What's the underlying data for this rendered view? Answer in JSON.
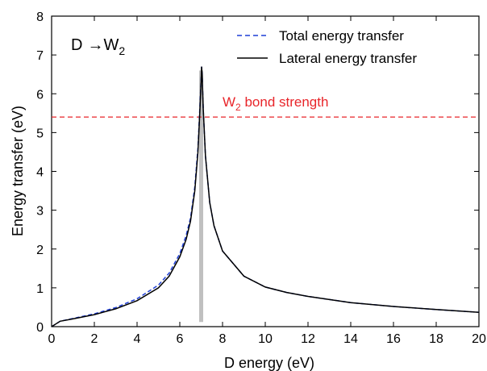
{
  "chart_data": {
    "type": "line",
    "xlabel": "D energy (eV)",
    "ylabel": "Energy transfer (eV)",
    "xlim": [
      0,
      20
    ],
    "ylim": [
      0,
      8
    ],
    "x_ticks": [
      0,
      2,
      4,
      6,
      8,
      10,
      12,
      14,
      16,
      18,
      20
    ],
    "y_ticks": [
      0,
      1,
      2,
      3,
      4,
      5,
      6,
      7,
      8
    ],
    "grid": false,
    "legend_position": "top-right",
    "reaction_label": {
      "left": "D",
      "arrow": "→",
      "right": "W",
      "sub": "2"
    },
    "series": [
      {
        "name": "Total energy transfer",
        "style": "dashed",
        "color": "#1f3fd6",
        "points": [
          [
            0,
            0
          ],
          [
            0.4,
            0.14
          ],
          [
            1,
            0.21
          ],
          [
            2,
            0.33
          ],
          [
            3,
            0.49
          ],
          [
            4,
            0.72
          ],
          [
            5,
            1.07
          ],
          [
            5.5,
            1.38
          ],
          [
            6,
            1.88
          ],
          [
            6.3,
            2.35
          ],
          [
            6.5,
            2.8
          ],
          [
            6.7,
            3.6
          ],
          [
            6.85,
            4.6
          ],
          [
            6.95,
            5.8
          ],
          [
            7.0,
            6.4
          ],
          [
            7.02,
            6.7
          ],
          [
            7.05,
            6.45
          ],
          [
            7.1,
            5.6
          ],
          [
            7.2,
            4.4
          ],
          [
            7.4,
            3.2
          ],
          [
            7.6,
            2.6
          ],
          [
            8,
            1.95
          ],
          [
            9,
            1.3
          ],
          [
            10,
            1.02
          ],
          [
            11,
            0.88
          ],
          [
            12,
            0.78
          ],
          [
            14,
            0.62
          ],
          [
            16,
            0.52
          ],
          [
            18,
            0.44
          ],
          [
            20,
            0.37
          ]
        ]
      },
      {
        "name": "Lateral energy transfer",
        "style": "solid",
        "color": "#000000",
        "points": [
          [
            0,
            0
          ],
          [
            0.4,
            0.14
          ],
          [
            1,
            0.2
          ],
          [
            2,
            0.31
          ],
          [
            3,
            0.46
          ],
          [
            4,
            0.67
          ],
          [
            5,
            1.0
          ],
          [
            5.5,
            1.3
          ],
          [
            6,
            1.8
          ],
          [
            6.3,
            2.25
          ],
          [
            6.5,
            2.72
          ],
          [
            6.7,
            3.5
          ],
          [
            6.85,
            4.5
          ],
          [
            6.95,
            5.7
          ],
          [
            7.0,
            6.35
          ],
          [
            7.02,
            6.7
          ],
          [
            7.05,
            6.45
          ],
          [
            7.1,
            5.6
          ],
          [
            7.2,
            4.4
          ],
          [
            7.4,
            3.2
          ],
          [
            7.6,
            2.6
          ],
          [
            8,
            1.95
          ],
          [
            9,
            1.3
          ],
          [
            10,
            1.02
          ],
          [
            11,
            0.88
          ],
          [
            12,
            0.78
          ],
          [
            14,
            0.62
          ],
          [
            16,
            0.52
          ],
          [
            18,
            0.44
          ],
          [
            20,
            0.37
          ]
        ]
      }
    ],
    "reference_line": {
      "y": 5.4,
      "color": "#e8252a",
      "style": "dashed",
      "label_main": "W",
      "label_sub": "2",
      "label_rest": " bond strength"
    },
    "vertical_band": {
      "x": 7.0,
      "y_from": 0.12,
      "y_to": 6.6,
      "color": "#c0c0c0"
    }
  }
}
